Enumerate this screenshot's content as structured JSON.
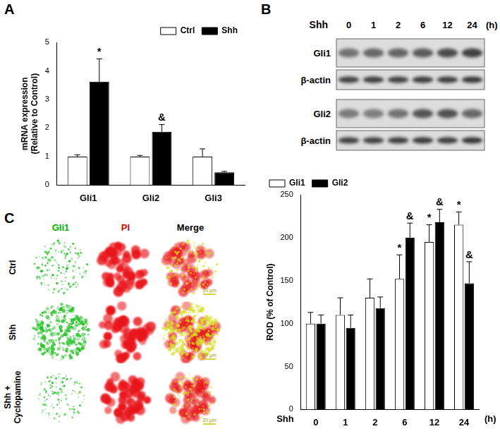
{
  "panel_labels": [
    "A",
    "B",
    "C"
  ],
  "chart_data": [
    {
      "type": "bar",
      "categories": [
        "Gli1",
        "Gli2",
        "Gli3"
      ],
      "ylabel": "mRNA expression\n(Relative to Control)",
      "ylim": [
        0,
        5
      ],
      "yticks": [
        0,
        1,
        2,
        3,
        4,
        5
      ],
      "grid": false,
      "legend": "upper right",
      "series": [
        {
          "name": "Ctrl",
          "color": "#ffffff",
          "values": [
            1.0,
            1.0,
            1.0
          ],
          "errors": [
            0.06,
            0.04,
            0.27
          ],
          "annotations": [
            null,
            null,
            null
          ]
        },
        {
          "name": "Shh",
          "color": "#000000",
          "values": [
            3.62,
            1.87,
            0.45
          ],
          "errors": [
            0.8,
            0.25,
            0.03
          ],
          "annotations": [
            "*",
            "&",
            null
          ]
        }
      ]
    },
    {
      "type": "bar",
      "categories": [
        "0",
        "1",
        "2",
        "6",
        "12",
        "24"
      ],
      "xlabel": "Shh",
      "xunit": "(h)",
      "ylabel": "ROD (% of Control)",
      "ylim": [
        0,
        250
      ],
      "yticks": [
        0,
        50,
        100,
        150,
        200,
        250
      ],
      "grid": false,
      "legend": "upper left",
      "series": [
        {
          "name": "Gli1",
          "color": "#ffffff",
          "values": [
            100,
            110,
            130,
            152,
            195,
            215
          ],
          "errors": [
            13,
            20,
            22,
            28,
            20,
            15
          ],
          "annotations": [
            null,
            null,
            null,
            "*",
            "*",
            "*"
          ]
        },
        {
          "name": "Gli2",
          "color": "#000000",
          "values": [
            100,
            95,
            118,
            200,
            218,
            147
          ],
          "errors": [
            10,
            15,
            13,
            17,
            15,
            25
          ],
          "annotations": [
            null,
            null,
            null,
            "&",
            "&",
            "&"
          ]
        }
      ]
    }
  ],
  "blot": {
    "treatment": "Shh",
    "lanes": [
      "0",
      "1",
      "2",
      "6",
      "12",
      "24"
    ],
    "unit": "(h)",
    "rows": [
      "Gli1",
      "β-actin",
      "Gli2",
      "β-actin"
    ]
  },
  "micrographs": {
    "columns": [
      {
        "label": "Gli1",
        "color": "#00b000"
      },
      {
        "label": "PI",
        "color": "#e00000"
      },
      {
        "label": "Merge",
        "color": "#000000"
      }
    ],
    "rows": [
      "Ctrl",
      "Shh",
      "Shh + Cyclopamine"
    ],
    "scale_bar": "20 µm"
  }
}
